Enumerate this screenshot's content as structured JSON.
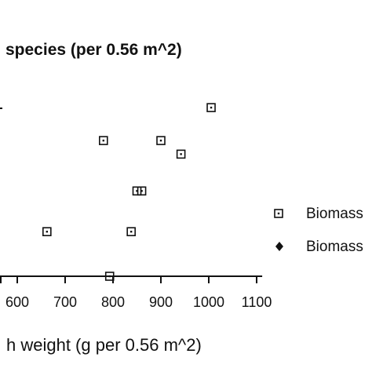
{
  "chart_data": {
    "type": "scatter",
    "title": "species  (per  0.56  m^2)",
    "xlabel": "h weight (g per 0.56 m^2)",
    "ylabel": "",
    "xlim": [
      530,
      1110
    ],
    "ylim": [
      0,
      100
    ],
    "x_ticks": [
      600,
      700,
      800,
      900,
      1000,
      1100
    ],
    "x_tick_labels": [
      "600",
      "700",
      "800",
      "900",
      "1000",
      "1100"
    ],
    "series": [
      {
        "name": "Biomass",
        "marker": "open-square",
        "color": "#111111",
        "points": [
          {
            "x": 1005,
            "y": 87
          },
          {
            "x": 780,
            "y": 70
          },
          {
            "x": 900,
            "y": 70
          },
          {
            "x": 942,
            "y": 63
          },
          {
            "x": 850,
            "y": 44
          },
          {
            "x": 860,
            "y": 44
          },
          {
            "x": 662,
            "y": 23
          },
          {
            "x": 838,
            "y": 23
          },
          {
            "x": 793,
            "y": 0
          }
        ]
      },
      {
        "name": "Biomass",
        "marker": "filled-diamond",
        "color": "#111111",
        "points": []
      }
    ],
    "legend_position": "right",
    "grid": false
  }
}
